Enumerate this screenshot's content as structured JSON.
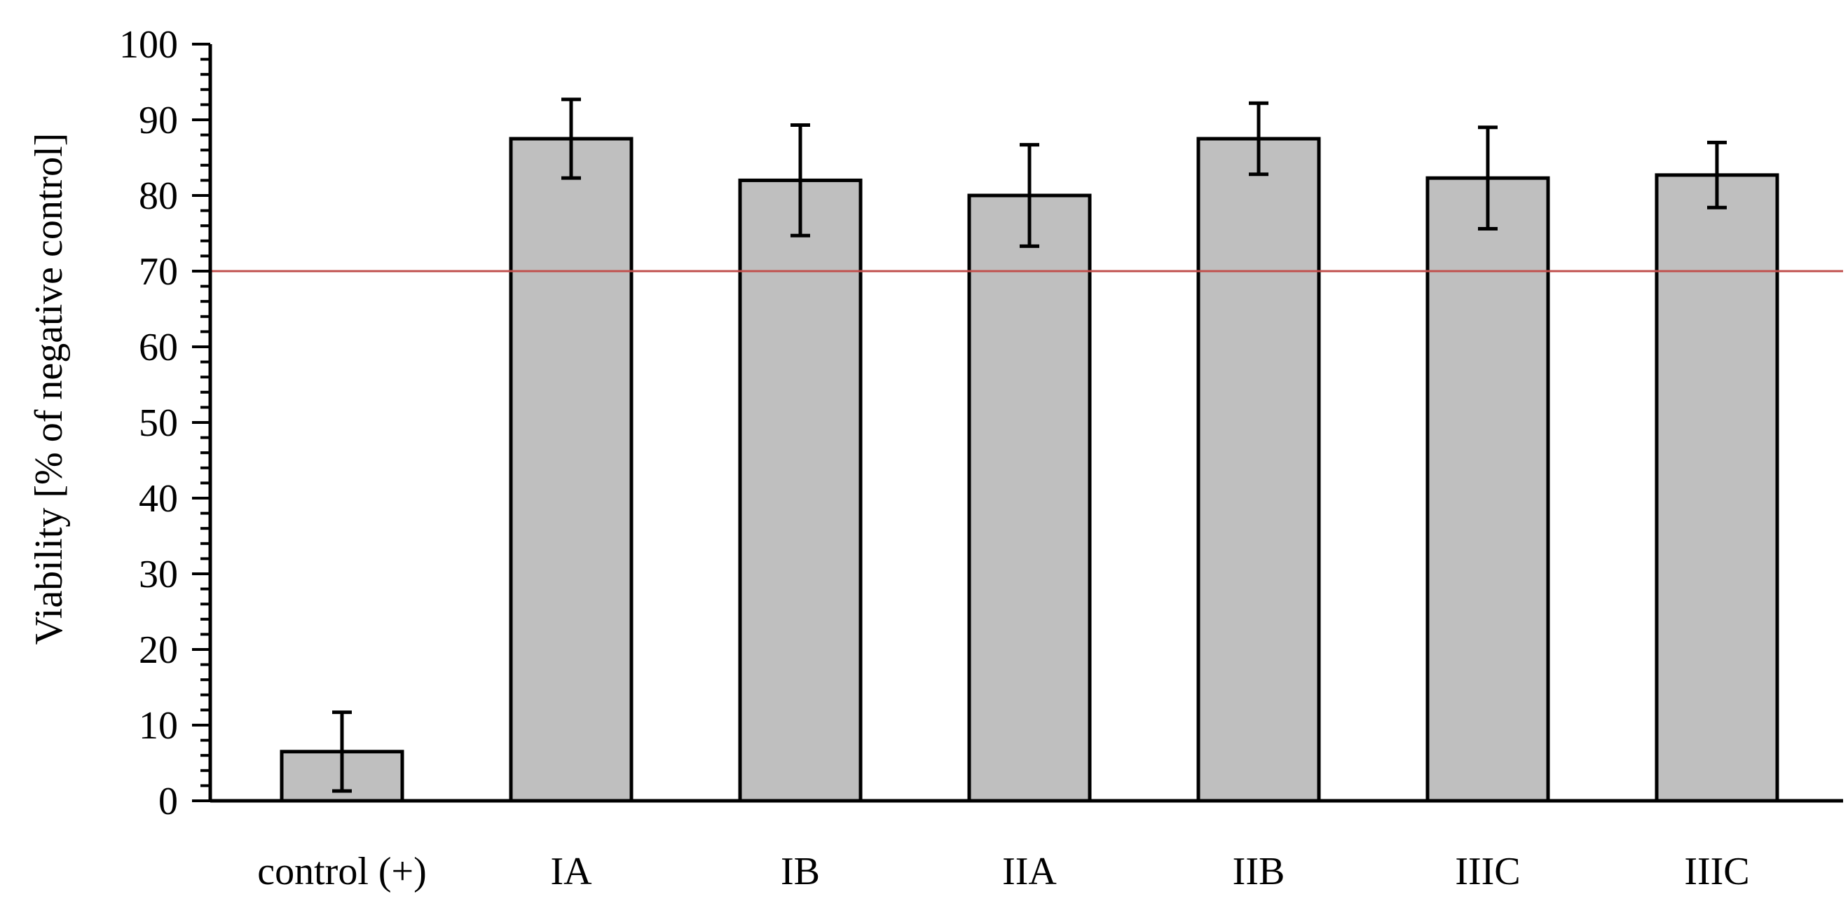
{
  "chart_data": {
    "type": "bar",
    "ylabel": "Viability [% of negative control]",
    "xlabel": "",
    "ylim": [
      0,
      100
    ],
    "yticks": [
      0,
      10,
      20,
      30,
      40,
      50,
      60,
      70,
      80,
      90,
      100
    ],
    "y_minor_step": 2,
    "grid": false,
    "legend": "none",
    "categories": [
      "control (+)",
      "IA",
      "IB",
      "IIA",
      "IIB",
      "IIIC",
      "IIIC"
    ],
    "values": [
      6.5,
      87.5,
      82.0,
      80.0,
      87.5,
      82.3,
      82.7
    ],
    "errors": [
      5.2,
      5.2,
      7.3,
      6.7,
      4.7,
      6.7,
      4.3
    ],
    "threshold": 70,
    "colors": {
      "bar_fill": "#bfbfbf",
      "bar_stroke": "#000000",
      "threshold_line": "#c0504d",
      "axis": "#000000"
    }
  }
}
